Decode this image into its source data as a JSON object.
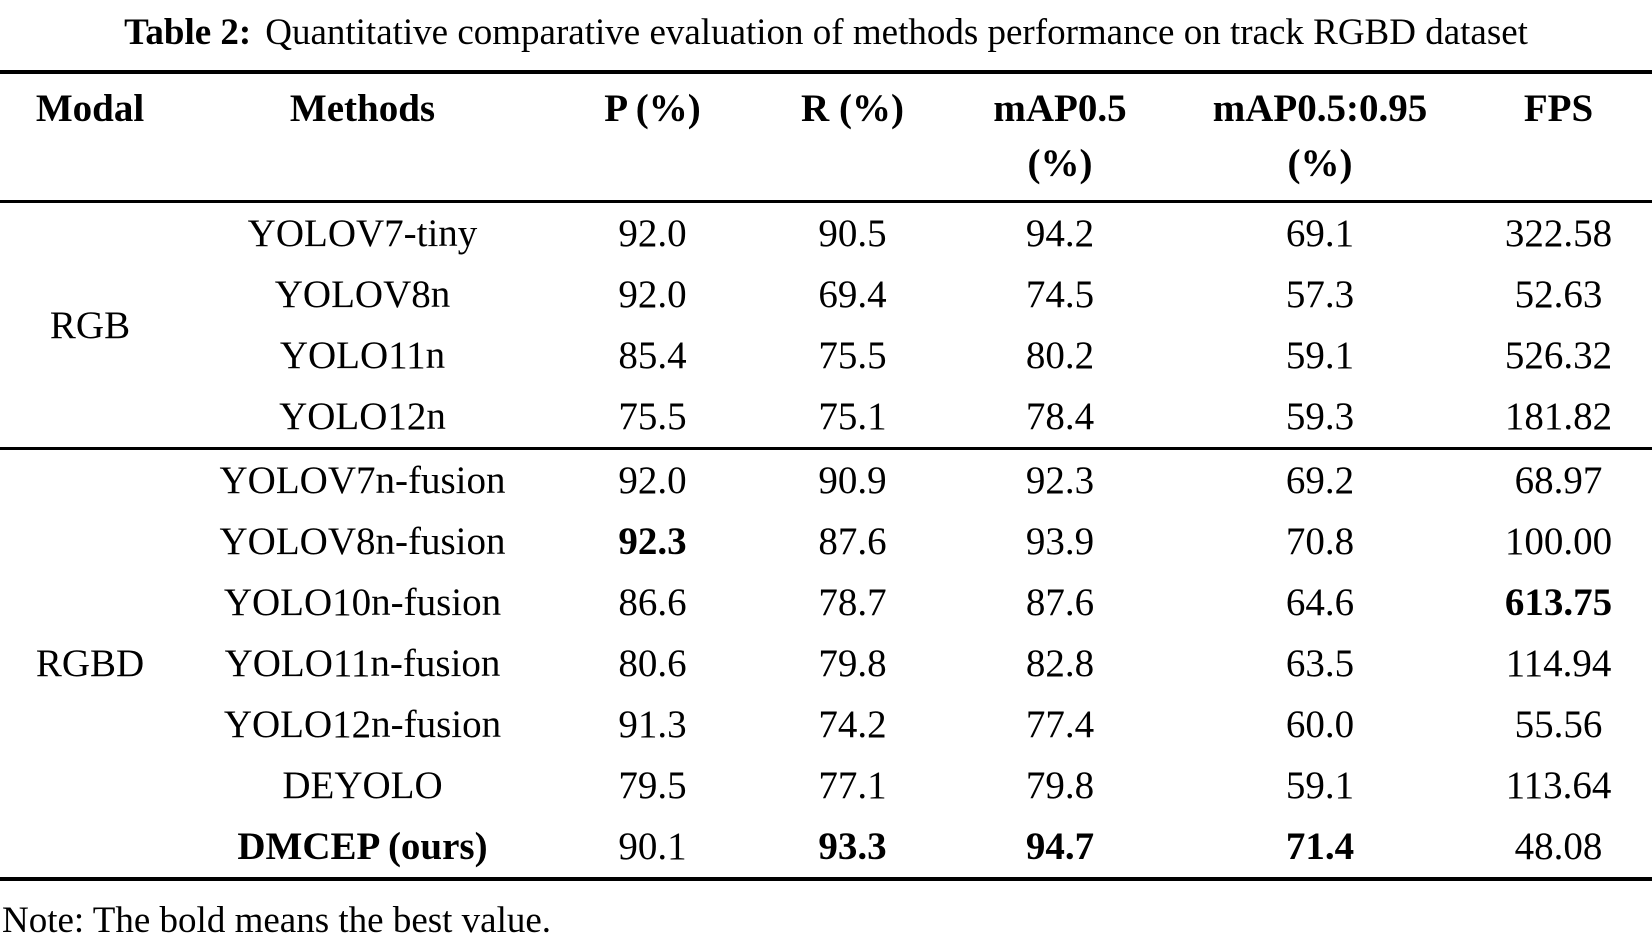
{
  "caption": {
    "label": "Table 2:",
    "text": "Quantitative comparative evaluation of methods performance on track RGBD dataset"
  },
  "table": {
    "columns": [
      {
        "label": "Modal"
      },
      {
        "label": "Methods"
      },
      {
        "label": "P (%)"
      },
      {
        "label": "R (%)"
      },
      {
        "label": "mAP0.5",
        "sub": "(%)"
      },
      {
        "label": "mAP0.5:0.95",
        "sub": "(%)"
      },
      {
        "label": "FPS"
      }
    ],
    "row_keys": [
      "method",
      "p",
      "r",
      "map50",
      "map5095",
      "fps"
    ],
    "groups": [
      {
        "modal": "RGB",
        "rows": [
          {
            "method": "YOLOV7-tiny",
            "p": "92.0",
            "r": "90.5",
            "map50": "94.2",
            "map5095": "69.1",
            "fps": "322.58",
            "bold": []
          },
          {
            "method": "YOLOV8n",
            "p": "92.0",
            "r": "69.4",
            "map50": "74.5",
            "map5095": "57.3",
            "fps": "52.63",
            "bold": []
          },
          {
            "method": "YOLO11n",
            "p": "85.4",
            "r": "75.5",
            "map50": "80.2",
            "map5095": "59.1",
            "fps": "526.32",
            "bold": []
          },
          {
            "method": "YOLO12n",
            "p": "75.5",
            "r": "75.1",
            "map50": "78.4",
            "map5095": "59.3",
            "fps": "181.82",
            "bold": []
          }
        ]
      },
      {
        "modal": "RGBD",
        "rows": [
          {
            "method": "YOLOV7n-fusion",
            "p": "92.0",
            "r": "90.9",
            "map50": "92.3",
            "map5095": "69.2",
            "fps": "68.97",
            "bold": []
          },
          {
            "method": "YOLOV8n-fusion",
            "p": "92.3",
            "r": "87.6",
            "map50": "93.9",
            "map5095": "70.8",
            "fps": "100.00",
            "bold": [
              "p"
            ]
          },
          {
            "method": "YOLO10n-fusion",
            "p": "86.6",
            "r": "78.7",
            "map50": "87.6",
            "map5095": "64.6",
            "fps": "613.75",
            "bold": [
              "fps"
            ]
          },
          {
            "method": "YOLO11n-fusion",
            "p": "80.6",
            "r": "79.8",
            "map50": "82.8",
            "map5095": "63.5",
            "fps": "114.94",
            "bold": []
          },
          {
            "method": "YOLO12n-fusion",
            "p": "91.3",
            "r": "74.2",
            "map50": "77.4",
            "map5095": "60.0",
            "fps": "55.56",
            "bold": []
          },
          {
            "method": "DEYOLO",
            "p": "79.5",
            "r": "77.1",
            "map50": "79.8",
            "map5095": "59.1",
            "fps": "113.64",
            "bold": []
          },
          {
            "method": "DMCEP (ours)",
            "p": "90.1",
            "r": "93.3",
            "map50": "94.7",
            "map5095": "71.4",
            "fps": "48.08",
            "bold": [
              "method",
              "r",
              "map50",
              "map5095"
            ]
          }
        ]
      }
    ]
  },
  "note": "Note: The bold means the best value.",
  "colors": {
    "text": "#000000",
    "background": "#ffffff",
    "rule": "#000000"
  }
}
